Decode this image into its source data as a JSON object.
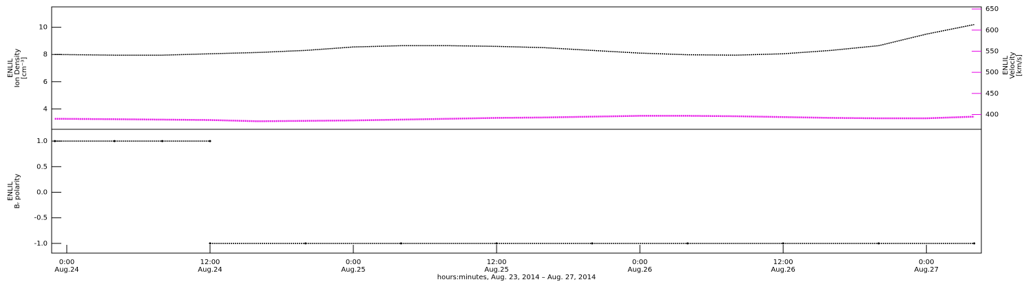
{
  "chart_data": [
    {
      "type": "line",
      "ylabel": [
        "ENLIL",
        "Ion Density",
        "[cm⁻³]"
      ],
      "y2label": [
        "ENLIL",
        "Velocity",
        "[km/s]"
      ],
      "xlim": [
        "2014-08-23T22:44",
        "2014-08-27T04:36"
      ],
      "ylim": [
        2.5,
        11.5
      ],
      "yticks": [
        4,
        6,
        8,
        10
      ],
      "y2lim": [
        365,
        655
      ],
      "y2ticks": [
        400,
        450,
        500,
        550,
        600,
        650
      ],
      "x": [
        "2014-08-23T23:00",
        "2014-08-24T04:00",
        "2014-08-24T08:00",
        "2014-08-24T12:00",
        "2014-08-24T16:00",
        "2014-08-24T20:00",
        "2014-08-25T00:00",
        "2014-08-25T04:00",
        "2014-08-25T08:00",
        "2014-08-25T12:00",
        "2014-08-25T16:00",
        "2014-08-25T20:00",
        "2014-08-26T00:00",
        "2014-08-26T04:00",
        "2014-08-26T08:00",
        "2014-08-26T12:00",
        "2014-08-26T16:00",
        "2014-08-26T20:00",
        "2014-08-27T00:00",
        "2014-08-27T04:00"
      ],
      "series": [
        {
          "name": "Ion Density",
          "color": "#000000",
          "values": [
            8.0,
            7.95,
            7.95,
            8.05,
            8.15,
            8.3,
            8.55,
            8.65,
            8.65,
            8.6,
            8.5,
            8.3,
            8.1,
            7.98,
            7.95,
            8.05,
            8.3,
            8.65,
            9.5,
            10.2
          ]
        },
        {
          "name": "Velocity",
          "color": "#e600e6",
          "axis": "y2",
          "values": [
            390,
            389,
            388,
            387,
            384,
            385,
            386,
            388,
            390,
            392,
            393,
            395,
            397,
            397,
            396,
            394,
            392,
            391,
            391,
            395
          ]
        }
      ]
    },
    {
      "type": "scatter",
      "ylabel": [
        "ENLIL",
        "Bᵣ polarity"
      ],
      "xlim": [
        "2014-08-23T22:44",
        "2014-08-27T04:36"
      ],
      "ylim": [
        -1.19,
        1.23
      ],
      "yticks": [
        {
          "value": -1,
          "label": "-1.0"
        },
        -0.5,
        {
          "value": 0,
          "label": "0.0"
        },
        0.5,
        {
          "value": 1,
          "label": "1.0"
        }
      ],
      "xticks": [
        {
          "value": "2014-08-24T00:00",
          "label": "0:00",
          "date": "Aug.24"
        },
        {
          "value": "2014-08-24T12:00",
          "label": "12:00",
          "date": "Aug.24"
        },
        {
          "value": "2014-08-25T00:00",
          "label": "0:00",
          "date": "Aug.25"
        },
        {
          "value": "2014-08-25T12:00",
          "label": "12:00",
          "date": "Aug.25"
        },
        {
          "value": "2014-08-26T00:00",
          "label": "0:00",
          "date": "Aug.26"
        },
        {
          "value": "2014-08-26T12:00",
          "label": "12:00",
          "date": "Aug.26"
        },
        {
          "value": "2014-08-27T00:00",
          "label": "0:00",
          "date": "Aug.27"
        }
      ],
      "xlabel": "hours:minutes, Aug. 23, 2014 – Aug. 27, 2014",
      "x": [
        "2014-08-23T23:00",
        "2014-08-24T04:00",
        "2014-08-24T08:00",
        "2014-08-24T12:00",
        "2014-08-24T12:00",
        "2014-08-24T20:00",
        "2014-08-25T04:00",
        "2014-08-25T12:00",
        "2014-08-25T20:00",
        "2014-08-26T04:00",
        "2014-08-26T12:00",
        "2014-08-26T20:00",
        "2014-08-27T04:00"
      ],
      "series": [
        {
          "name": "Br polarity",
          "color": "#000000",
          "values": [
            1,
            1,
            1,
            1,
            -1,
            -1,
            -1,
            -1,
            -1,
            -1,
            -1,
            -1,
            -1
          ]
        }
      ]
    }
  ]
}
